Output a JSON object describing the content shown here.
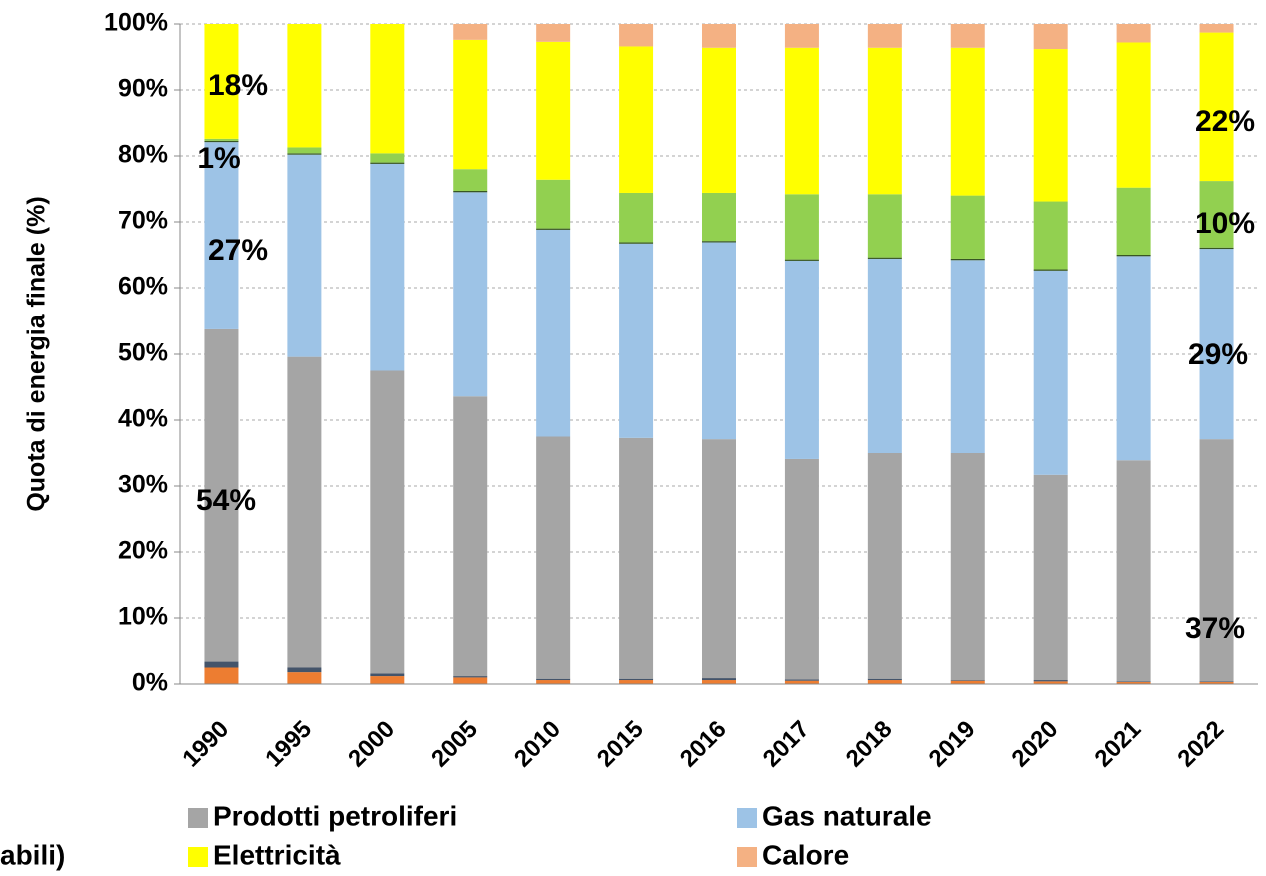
{
  "chart_data": {
    "type": "stacked_bar",
    "ylabel": "Quota di energia finale (%)",
    "categories": [
      "1990",
      "1995",
      "2000",
      "2005",
      "2010",
      "2015",
      "2016",
      "2017",
      "2018",
      "2019",
      "2020",
      "2021",
      "2022"
    ],
    "series": [
      {
        "color": "#ed7d31",
        "values": [
          2.5,
          1.8,
          1.2,
          1.0,
          0.6,
          0.6,
          0.6,
          0.5,
          0.6,
          0.5,
          0.4,
          0.3,
          0.3
        ]
      },
      {
        "color": "#44546a",
        "values": [
          0.9,
          0.7,
          0.4,
          0.2,
          0.2,
          0.2,
          0.3,
          0.2,
          0.2,
          0.1,
          0.2,
          0.1,
          0.1
        ]
      },
      {
        "name": "Prodotti petroliferi",
        "color": "#a5a5a5",
        "values": [
          50.4,
          47.1,
          45.9,
          42.4,
          36.7,
          36.5,
          36.2,
          33.4,
          34.2,
          34.4,
          31.1,
          33.5,
          36.7
        ]
      },
      {
        "name": "Gas naturale",
        "color": "#9dc3e6",
        "values": [
          28.3,
          30.6,
          31.3,
          30.9,
          31.3,
          29.4,
          29.8,
          30.0,
          29.4,
          29.2,
          30.9,
          30.9,
          28.8
        ]
      },
      {
        "color": "#375623",
        "values": [
          0.2,
          0.2,
          0.2,
          0.2,
          0.2,
          0.2,
          0.2,
          0.2,
          0.2,
          0.2,
          0.2,
          0.2,
          0.2
        ]
      },
      {
        "color": "#92d050",
        "values": [
          0.3,
          0.9,
          1.4,
          3.3,
          7.4,
          7.5,
          7.3,
          9.9,
          9.6,
          9.6,
          10.3,
          10.2,
          10.1
        ]
      },
      {
        "name": "Elettricità",
        "color": "#ffff00",
        "values": [
          17.4,
          18.7,
          19.6,
          19.6,
          20.9,
          22.2,
          22.0,
          22.2,
          22.2,
          22.4,
          23.1,
          22.0,
          22.5
        ]
      },
      {
        "name": "Calore",
        "color": "#f4b183",
        "values": [
          0,
          0,
          0,
          2.4,
          2.7,
          3.4,
          3.6,
          3.6,
          3.6,
          3.6,
          3.8,
          2.8,
          1.3
        ]
      }
    ],
    "ylim": [
      0,
      100
    ],
    "yticks": [
      {
        "value": 0,
        "label": "0%"
      },
      {
        "value": 10,
        "label": "10%"
      },
      {
        "value": 20,
        "label": "20%"
      },
      {
        "value": 30,
        "label": "30%"
      },
      {
        "value": 40,
        "label": "40%"
      },
      {
        "value": 50,
        "label": "50%"
      },
      {
        "value": 60,
        "label": "60%"
      },
      {
        "value": 70,
        "label": "70%"
      },
      {
        "value": 80,
        "label": "80%"
      },
      {
        "value": 90,
        "label": "90%"
      },
      {
        "value": 100,
        "label": "100%"
      }
    ],
    "annotations": [
      "18%",
      "1%",
      "27%",
      "54%",
      "22%",
      "10%",
      "29%",
      "37%"
    ],
    "legend_fragment": "abili)"
  }
}
